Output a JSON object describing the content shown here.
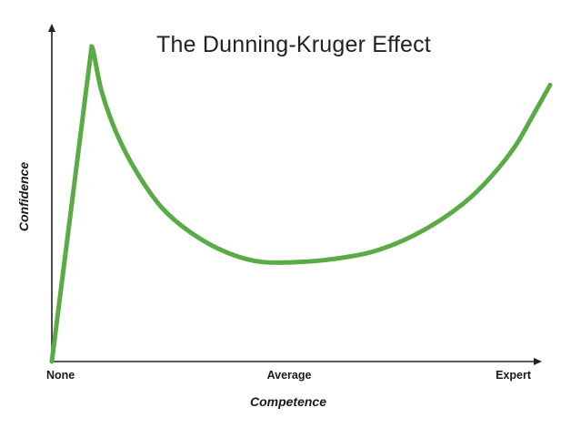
{
  "chart_data": {
    "type": "line",
    "title": "The Dunning-Kruger Effect",
    "xlabel": "Competence",
    "ylabel": "Confidence",
    "x_ticks": [
      "None",
      "Average",
      "Expert"
    ],
    "xlim": [
      0,
      100
    ],
    "ylim": [
      0,
      100
    ],
    "grid": false,
    "legend": "none",
    "series": [
      {
        "color": "#5aab46",
        "x": [
          0,
          8,
          10,
          13,
          17,
          22,
          28,
          35,
          42,
          50,
          57,
          64,
          71,
          78,
          84,
          89,
          93,
          96,
          100
        ],
        "y": [
          0,
          98,
          84,
          71,
          59,
          48,
          40,
          34,
          31,
          31,
          32,
          34,
          38,
          44,
          51,
          59,
          67,
          75,
          86
        ]
      }
    ],
    "colors": {
      "line": "#5aab46",
      "axis": "#222222"
    }
  }
}
